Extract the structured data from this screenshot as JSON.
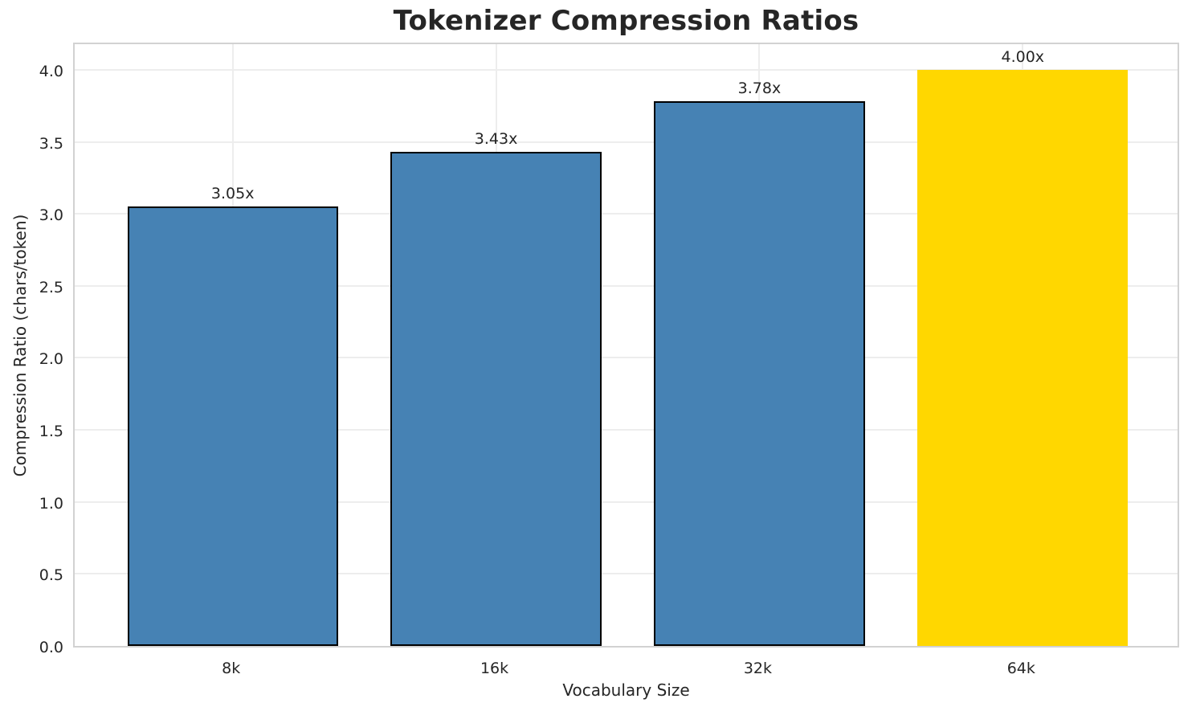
{
  "chart_data": {
    "type": "bar",
    "title": "Tokenizer Compression Ratios",
    "xlabel": "Vocabulary Size",
    "ylabel": "Compression Ratio (chars/token)",
    "categories": [
      "8k",
      "16k",
      "32k",
      "64k"
    ],
    "values": [
      3.05,
      3.43,
      3.78,
      4.0
    ],
    "bar_labels": [
      "3.05x",
      "3.43x",
      "3.78x",
      "4.00x"
    ],
    "bar_colors": [
      "#4682b4",
      "#4682b4",
      "#4682b4",
      "#ffd700"
    ],
    "bar_edge_colors": [
      "#000000",
      "#000000",
      "#000000",
      "none"
    ],
    "highlight_category": "64k",
    "yticks": [
      0.0,
      0.5,
      1.0,
      1.5,
      2.0,
      2.5,
      3.0,
      3.5,
      4.0
    ],
    "ytick_labels": [
      "0.0",
      "0.5",
      "1.0",
      "1.5",
      "2.0",
      "2.5",
      "3.0",
      "3.5",
      "4.0"
    ],
    "ylim": [
      0,
      4.2
    ],
    "grid": "both",
    "grid_color": "#ededed",
    "legend": "none",
    "palette": {
      "default_bar": "#4682b4",
      "highlight_bar": "#ffd700",
      "bar_edge": "#000000",
      "text": "#262626"
    }
  }
}
